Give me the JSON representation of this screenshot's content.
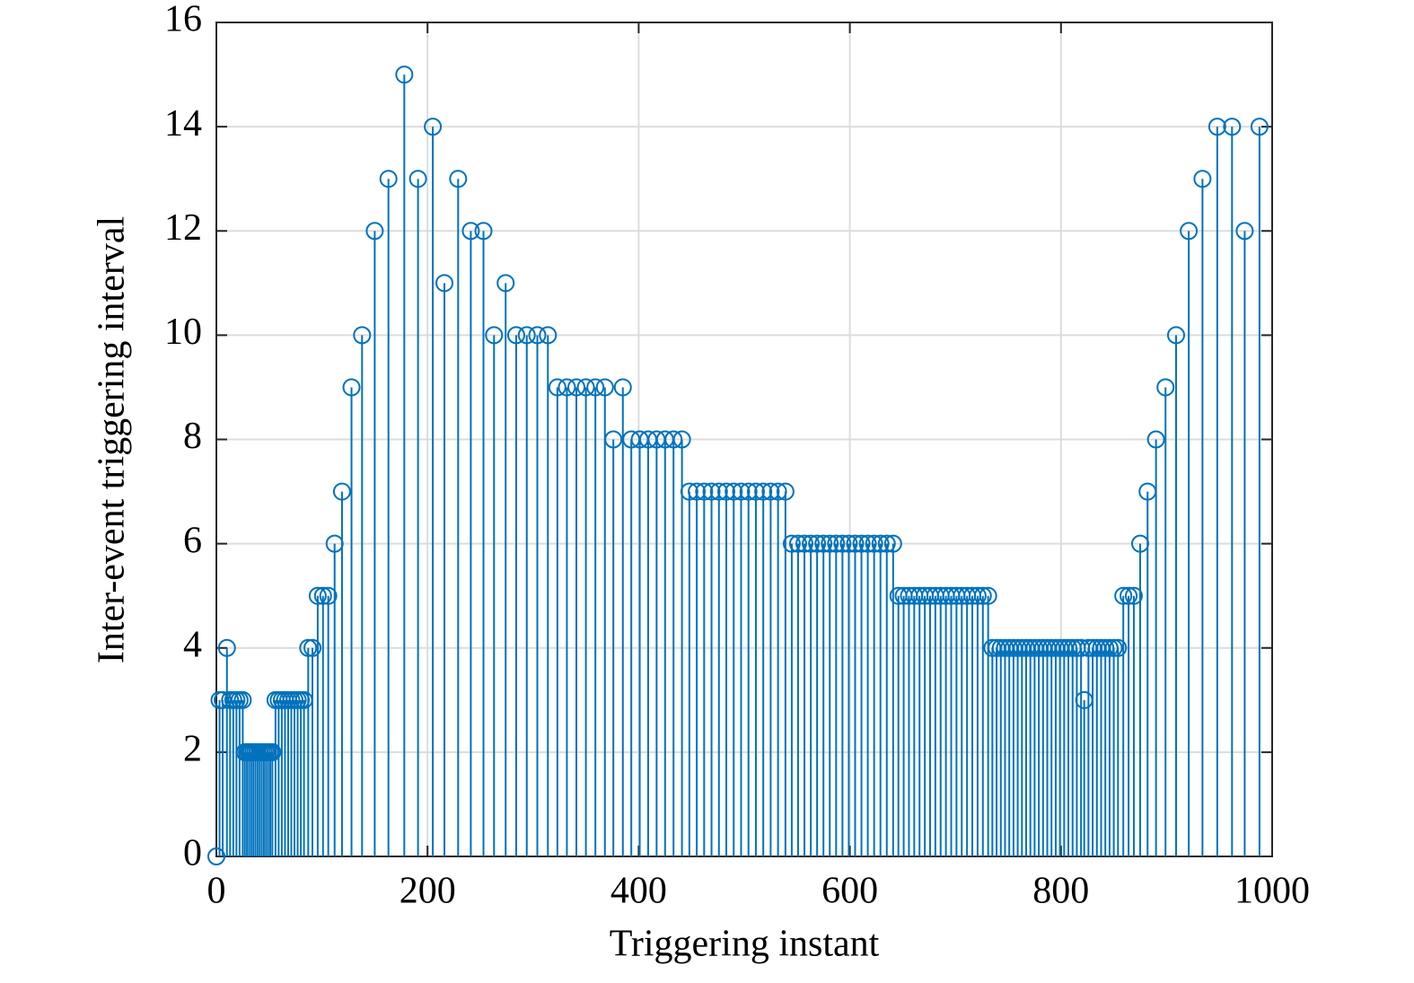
{
  "chart_data": {
    "type": "stem",
    "xlabel": "Triggering instant",
    "ylabel": "Inter-event triggering interval",
    "xlim": [
      0,
      1000
    ],
    "xticks": [
      0,
      200,
      400,
      600,
      800,
      1000
    ],
    "ylim": [
      0,
      16
    ],
    "yticks": [
      0,
      2,
      4,
      6,
      8,
      10,
      12,
      14,
      16
    ],
    "grid": true,
    "color": "#0072bd",
    "x": [
      0,
      3,
      6,
      10,
      13,
      16,
      19,
      22,
      25,
      27,
      29,
      31,
      33,
      35,
      37,
      39,
      41,
      43,
      45,
      47,
      49,
      51,
      53,
      56,
      59,
      62,
      65,
      68,
      71,
      74,
      77,
      80,
      83,
      87,
      91,
      96,
      101,
      106,
      112,
      119,
      128,
      138,
      150,
      163,
      178,
      191,
      205,
      216,
      229,
      241,
      253,
      263,
      274,
      284,
      294,
      304,
      314,
      323,
      332,
      341,
      350,
      359,
      368,
      376,
      385,
      393,
      401,
      409,
      417,
      425,
      433,
      441,
      448,
      455,
      462,
      469,
      476,
      483,
      490,
      497,
      504,
      511,
      518,
      525,
      532,
      539,
      545,
      551,
      557,
      563,
      569,
      575,
      581,
      587,
      593,
      599,
      605,
      611,
      617,
      623,
      629,
      635,
      641,
      646,
      651,
      656,
      661,
      666,
      671,
      676,
      681,
      686,
      691,
      696,
      701,
      706,
      711,
      716,
      721,
      726,
      731,
      735,
      739,
      743,
      747,
      751,
      755,
      759,
      763,
      767,
      771,
      775,
      779,
      783,
      787,
      791,
      795,
      799,
      803,
      807,
      811,
      815,
      819,
      822,
      826,
      830,
      834,
      838,
      842,
      846,
      850,
      854,
      859,
      864,
      869,
      875,
      882,
      890,
      899,
      909,
      921,
      934,
      948,
      962,
      974,
      988
    ],
    "values": [
      0,
      3,
      3,
      4,
      3,
      3,
      3,
      3,
      3,
      2,
      2,
      2,
      2,
      2,
      2,
      2,
      2,
      2,
      2,
      2,
      2,
      2,
      2,
      3,
      3,
      3,
      3,
      3,
      3,
      3,
      3,
      3,
      3,
      4,
      4,
      5,
      5,
      5,
      6,
      7,
      9,
      10,
      12,
      13,
      15,
      13,
      14,
      11,
      13,
      12,
      12,
      10,
      11,
      10,
      10,
      10,
      10,
      9,
      9,
      9,
      9,
      9,
      9,
      8,
      9,
      8,
      8,
      8,
      8,
      8,
      8,
      8,
      7,
      7,
      7,
      7,
      7,
      7,
      7,
      7,
      7,
      7,
      7,
      7,
      7,
      7,
      6,
      6,
      6,
      6,
      6,
      6,
      6,
      6,
      6,
      6,
      6,
      6,
      6,
      6,
      6,
      6,
      6,
      5,
      5,
      5,
      5,
      5,
      5,
      5,
      5,
      5,
      5,
      5,
      5,
      5,
      5,
      5,
      5,
      5,
      5,
      4,
      4,
      4,
      4,
      4,
      4,
      4,
      4,
      4,
      4,
      4,
      4,
      4,
      4,
      4,
      4,
      4,
      4,
      4,
      4,
      4,
      4,
      3,
      4,
      4,
      4,
      4,
      4,
      4,
      4,
      4,
      5,
      5,
      5,
      6,
      7,
      8,
      9,
      10,
      12,
      13,
      14,
      14,
      12,
      14
    ]
  }
}
